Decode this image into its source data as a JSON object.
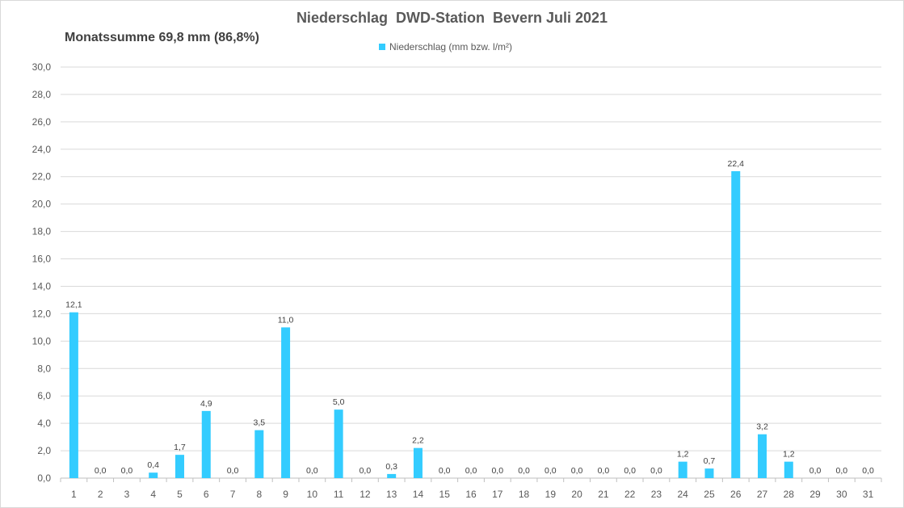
{
  "chart_data": {
    "type": "bar",
    "title": "Niederschlag  DWD-Station  Bevern Juli 2021",
    "subtitle": "Monatssumme 69,8 mm (86,8%)",
    "legend": [
      "Niederschlag (mm bzw. l/m²)"
    ],
    "legend_position": "top",
    "grid": true,
    "ylim": [
      0,
      30
    ],
    "y_ticks": [
      "0,0",
      "2,0",
      "4,0",
      "6,0",
      "8,0",
      "10,0",
      "12,0",
      "14,0",
      "16,0",
      "18,0",
      "20,0",
      "22,0",
      "24,0",
      "26,0",
      "28,0",
      "30,0"
    ],
    "categories": [
      "1",
      "2",
      "3",
      "4",
      "5",
      "6",
      "7",
      "8",
      "9",
      "10",
      "11",
      "12",
      "13",
      "14",
      "15",
      "16",
      "17",
      "18",
      "19",
      "20",
      "21",
      "22",
      "23",
      "24",
      "25",
      "26",
      "27",
      "28",
      "29",
      "30",
      "31"
    ],
    "series": [
      {
        "name": "Niederschlag (mm bzw. l/m²)",
        "color": "#33ccff",
        "values": [
          12.1,
          0.0,
          0.0,
          0.4,
          1.7,
          4.9,
          0.0,
          3.5,
          11.0,
          0.0,
          5.0,
          0.0,
          0.3,
          2.2,
          0.0,
          0.0,
          0.0,
          0.0,
          0.0,
          0.0,
          0.0,
          0.0,
          0.0,
          1.2,
          0.7,
          22.4,
          3.2,
          1.2,
          0.0,
          0.0,
          0.0
        ],
        "labels": [
          "12,1",
          "0,0",
          "0,0",
          "0,4",
          "1,7",
          "4,9",
          "0,0",
          "3,5",
          "11,0",
          "0,0",
          "5,0",
          "0,0",
          "0,3",
          "2,2",
          "0,0",
          "0,0",
          "0,0",
          "0,0",
          "0,0",
          "0,0",
          "0,0",
          "0,0",
          "0,0",
          "1,2",
          "0,7",
          "22,4",
          "3,2",
          "1,2",
          "0,0",
          "0,0",
          "0,0"
        ]
      }
    ]
  }
}
